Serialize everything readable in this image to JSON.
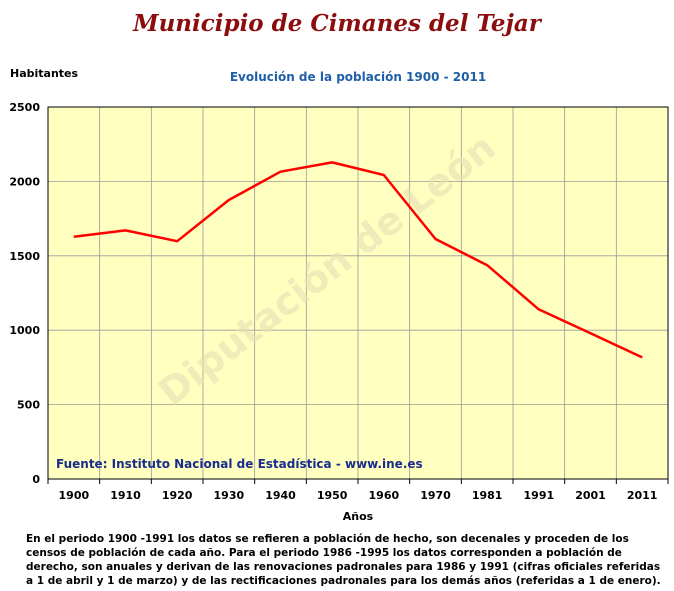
{
  "page": {
    "title": "Municipio de Cimanes del Tejar",
    "note": "En el periodo 1900 -1991 los datos se refieren a población de hecho, son decenales y proceden de los censos de población de cada año. Para el periodo 1986 -1995 los datos corresponden a población de derecho, son anuales y derivan de las renovaciones padronales para 1986 y 1991 (cifras oficiales referidas a 1 de abril y 1 de marzo) y de las rectificaciones padronales para los demás años (referidas a 1 de enero)."
  },
  "chart_data": {
    "type": "line",
    "title": "Evolución de la población 1900 - 2011",
    "xlabel": "Años",
    "ylabel": "Habitantes",
    "categories": [
      "1900",
      "1910",
      "1920",
      "1930",
      "1940",
      "1950",
      "1960",
      "1970",
      "1981",
      "1991",
      "2001",
      "2011"
    ],
    "series": [
      {
        "values": [
          1628,
          1671,
          1598,
          1875,
          2065,
          2128,
          2043,
          1613,
          1437,
          1140,
          979,
          817
        ]
      }
    ],
    "yticks": [
      "0",
      "500",
      "1000",
      "1500",
      "2000",
      "2500"
    ],
    "ylim": [
      0,
      2500
    ],
    "grid": true,
    "source": "Fuente: Instituto Nacional de Estadística - www.ine.es",
    "watermark": "Diputación de León",
    "colors": {
      "plot_background": "#ffffc0",
      "line": "#ff0000",
      "grid": "#9a9a9a"
    }
  }
}
